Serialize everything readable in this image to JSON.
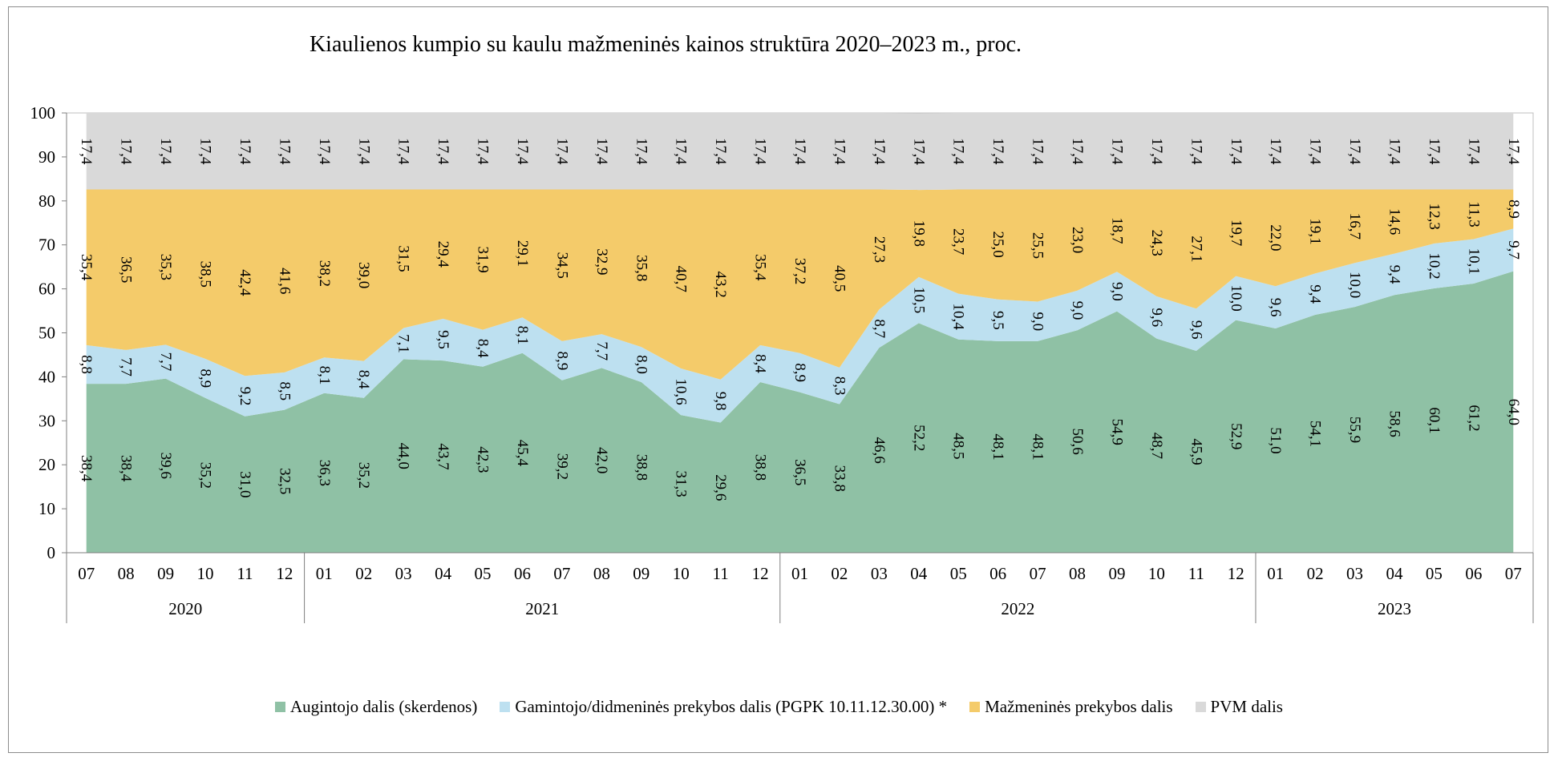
{
  "chart_data": {
    "type": "area",
    "stacked": true,
    "title": "Kiaulienos kumpio su kaulu mažmeninės kainos struktūra 2020–2023 m., proc.",
    "xlabel": "",
    "ylabel": "",
    "ylim": [
      0,
      100
    ],
    "yticks": [
      "0",
      "10",
      "20",
      "30",
      "40",
      "50",
      "60",
      "70",
      "80",
      "90",
      "100"
    ],
    "months": [
      "07",
      "08",
      "09",
      "10",
      "11",
      "12",
      "01",
      "02",
      "03",
      "04",
      "05",
      "06",
      "07",
      "08",
      "09",
      "10",
      "11",
      "12",
      "01",
      "02",
      "03",
      "04",
      "05",
      "06",
      "07",
      "08",
      "09",
      "10",
      "11",
      "12",
      "01",
      "02",
      "03",
      "04",
      "05",
      "06",
      "07"
    ],
    "years": [
      {
        "label": "2020",
        "count": 6
      },
      {
        "label": "2021",
        "count": 12
      },
      {
        "label": "2022",
        "count": 12
      },
      {
        "label": "2023",
        "count": 7
      }
    ],
    "legend_position": "bottom",
    "grid": false,
    "series": [
      {
        "name": "Augintojo dalis (skerdenos)",
        "color": "#8fc1a5",
        "values": [
          38.4,
          38.4,
          39.6,
          35.2,
          31.0,
          32.5,
          36.3,
          35.2,
          44.0,
          43.7,
          42.3,
          45.4,
          39.2,
          42.0,
          38.8,
          31.3,
          29.6,
          38.8,
          36.5,
          33.8,
          46.6,
          52.2,
          48.5,
          48.1,
          48.1,
          50.6,
          54.9,
          48.7,
          45.9,
          52.9,
          51.0,
          54.1,
          55.9,
          58.6,
          60.1,
          61.2,
          64.0
        ],
        "labels": [
          "38,4",
          "38,4",
          "39,6",
          "35,2",
          "31,0",
          "32,5",
          "36,3",
          "35,2",
          "44,0",
          "43,7",
          "42,3",
          "45,4",
          "39,2",
          "42,0",
          "38,8",
          "31,3",
          "29,6",
          "38,8",
          "36,5",
          "33,8",
          "46,6",
          "52,2",
          "48,5",
          "48,1",
          "48,1",
          "50,6",
          "54,9",
          "48,7",
          "45,9",
          "52,9",
          "51,0",
          "54,1",
          "55,9",
          "58,6",
          "60,1",
          "61,2",
          "64,0"
        ]
      },
      {
        "name": "Gamintojo/didmeninės prekybos dalis (PGPK 10.11.12.30.00) *",
        "color": "#bde0f0",
        "values": [
          8.8,
          7.7,
          7.7,
          8.9,
          9.2,
          8.5,
          8.1,
          8.4,
          7.1,
          9.5,
          8.4,
          8.1,
          8.9,
          7.7,
          8.0,
          10.6,
          9.8,
          8.4,
          8.9,
          8.3,
          8.7,
          10.5,
          10.4,
          9.5,
          9.0,
          9.0,
          9.0,
          9.6,
          9.6,
          10.0,
          9.6,
          9.4,
          10.0,
          9.4,
          10.2,
          10.1,
          9.7
        ],
        "labels": [
          "8,8",
          "7,7",
          "7,7",
          "8,9",
          "9,2",
          "8,5",
          "8,1",
          "8,4",
          "7,1",
          "9,5",
          "8,4",
          "8,1",
          "8,9",
          "7,7",
          "8,0",
          "10,6",
          "9,8",
          "8,4",
          "8,9",
          "8,3",
          "8,7",
          "10,5",
          "10,4",
          "9,5",
          "9,0",
          "9,0",
          "9,0",
          "9,6",
          "9,6",
          "10,0",
          "9,6",
          "9,4",
          "10,0",
          "9,4",
          "10,2",
          "10,1",
          "9,7"
        ]
      },
      {
        "name": "Mažmeninės prekybos dalis",
        "color": "#f4cb6a",
        "values": [
          35.4,
          36.5,
          35.3,
          38.5,
          42.4,
          41.6,
          38.2,
          39.0,
          31.5,
          29.4,
          31.9,
          29.1,
          34.5,
          32.9,
          35.8,
          40.7,
          43.2,
          35.4,
          37.2,
          40.5,
          27.3,
          19.8,
          23.7,
          25.0,
          25.5,
          23.0,
          18.7,
          24.3,
          27.1,
          19.7,
          22.0,
          19.1,
          16.7,
          14.6,
          12.3,
          11.3,
          8.9
        ],
        "labels": [
          "35,4",
          "36,5",
          "35,3",
          "38,5",
          "42,4",
          "41,6",
          "38,2",
          "39,0",
          "31,5",
          "29,4",
          "31,9",
          "29,1",
          "34,5",
          "32,9",
          "35,8",
          "40,7",
          "43,2",
          "35,4",
          "37,2",
          "40,5",
          "27,3",
          "19,8",
          "23,7",
          "25,0",
          "25,5",
          "23,0",
          "18,7",
          "24,3",
          "27,1",
          "19,7",
          "22,0",
          "19,1",
          "16,7",
          "14,6",
          "12,3",
          "11,3",
          "8,9"
        ]
      },
      {
        "name": "PVM dalis",
        "color": "#d9d9d9",
        "values": [
          17.4,
          17.4,
          17.4,
          17.4,
          17.4,
          17.4,
          17.4,
          17.4,
          17.4,
          17.4,
          17.4,
          17.4,
          17.4,
          17.4,
          17.4,
          17.4,
          17.4,
          17.4,
          17.4,
          17.4,
          17.4,
          17.4,
          17.4,
          17.4,
          17.4,
          17.4,
          17.4,
          17.4,
          17.4,
          17.4,
          17.4,
          17.4,
          17.4,
          17.4,
          17.4,
          17.4,
          17.4
        ],
        "labels": [
          "17,4",
          "17,4",
          "17,4",
          "17,4",
          "17,4",
          "17,4",
          "17,4",
          "17,4",
          "17,4",
          "17,4",
          "17,4",
          "17,4",
          "17,4",
          "17,4",
          "17,4",
          "17,4",
          "17,4",
          "17,4",
          "17,4",
          "17,4",
          "17,4",
          "17,4",
          "17,4",
          "17,4",
          "17,4",
          "17,4",
          "17,4",
          "17,4",
          "17,4",
          "17,4",
          "17,4",
          "17,4",
          "17,4",
          "17,4",
          "17,4",
          "17,4",
          "17,4"
        ]
      }
    ]
  }
}
